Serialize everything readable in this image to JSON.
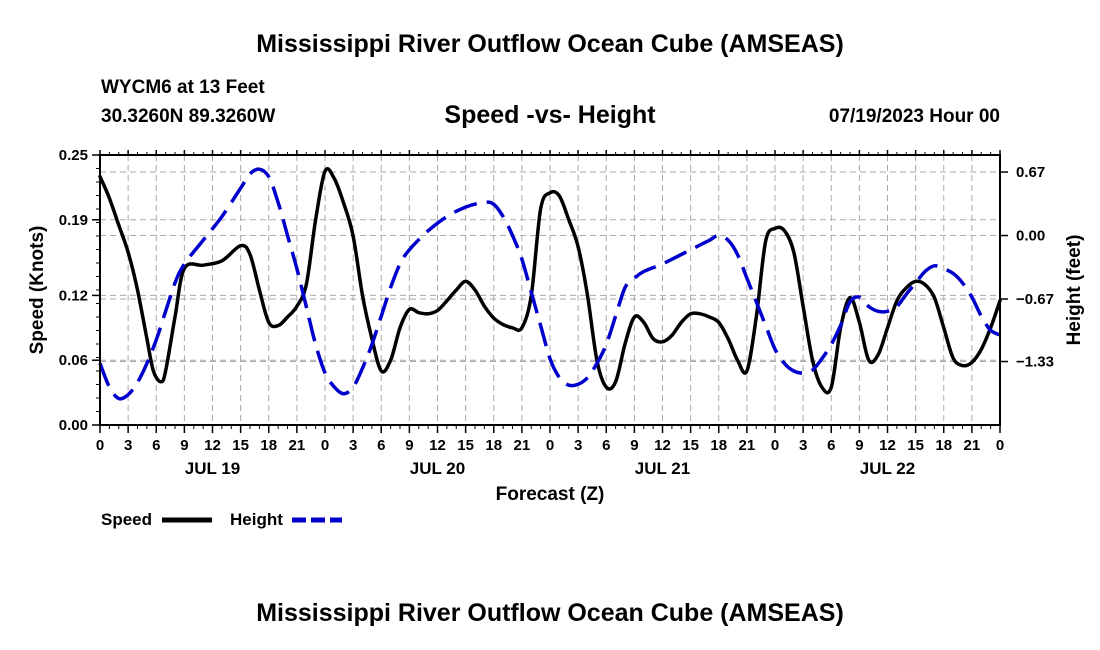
{
  "header": {
    "title": "Mississippi River Outflow Ocean Cube (AMSEAS)",
    "station": "WYCM6 at 13 Feet",
    "coords": "30.3260N  89.3260W",
    "subtitle": "Speed -vs- Height",
    "date_hour": "07/19/2023 Hour 00"
  },
  "footer": {
    "title": "Mississippi River Outflow Ocean Cube (AMSEAS)"
  },
  "legend": {
    "speed_label": "Speed",
    "height_label": "Height"
  },
  "colors": {
    "speed": "#000000",
    "height": "#0000cc",
    "grid": "#aaaaaa"
  },
  "chart_data": {
    "type": "line",
    "xlabel": "Forecast (Z)",
    "ylabel_left": "Speed (Knots)",
    "ylabel_right": "Height (feet)",
    "x_range_hours": [
      0,
      96
    ],
    "x_tick_hours": [
      0,
      3,
      6,
      9,
      12,
      15,
      18,
      21,
      24,
      27,
      30,
      33,
      36,
      39,
      42,
      45,
      48,
      51,
      54,
      57,
      60,
      63,
      66,
      69,
      72,
      75,
      78,
      81,
      84,
      87,
      90,
      93,
      96
    ],
    "x_tick_labels": [
      "0",
      "3",
      "6",
      "9",
      "12",
      "15",
      "18",
      "21",
      "0",
      "3",
      "6",
      "9",
      "12",
      "15",
      "18",
      "21",
      "0",
      "3",
      "6",
      "9",
      "12",
      "15",
      "18",
      "21",
      "0",
      "3",
      "6",
      "9",
      "12",
      "15",
      "18",
      "21",
      "0"
    ],
    "day_labels": [
      {
        "label": "JUL 19",
        "hour": 12
      },
      {
        "label": "JUL 20",
        "hour": 36
      },
      {
        "label": "JUL 21",
        "hour": 60
      },
      {
        "label": "JUL 22",
        "hour": 84
      }
    ],
    "y_left": {
      "range": [
        0,
        0.25
      ],
      "ticks": [
        0.0,
        0.06,
        0.12,
        0.19,
        0.25
      ],
      "tick_labels": [
        "0.00",
        "0.06",
        "0.12",
        "0.19",
        "0.25"
      ]
    },
    "y_right": {
      "range": [
        -2.0,
        0.85
      ],
      "ticks": [
        0.67,
        0.0,
        -0.67,
        -1.33
      ],
      "tick_labels": [
        "0.67",
        "0.00",
        "−0.67",
        "−1.33"
      ]
    },
    "series": [
      {
        "name": "Speed",
        "axis": "left",
        "style": "solid",
        "points": [
          [
            0,
            0.23
          ],
          [
            1,
            0.21
          ],
          [
            2,
            0.185
          ],
          [
            3,
            0.16
          ],
          [
            4,
            0.125
          ],
          [
            5,
            0.08
          ],
          [
            5.7,
            0.05
          ],
          [
            6.5,
            0.04
          ],
          [
            7,
            0.05
          ],
          [
            8,
            0.1
          ],
          [
            9,
            0.145
          ],
          [
            11,
            0.148
          ],
          [
            13,
            0.152
          ],
          [
            15,
            0.166
          ],
          [
            16,
            0.158
          ],
          [
            17,
            0.125
          ],
          [
            18,
            0.095
          ],
          [
            19,
            0.092
          ],
          [
            20,
            0.1
          ],
          [
            21,
            0.11
          ],
          [
            22,
            0.13
          ],
          [
            23,
            0.19
          ],
          [
            24,
            0.235
          ],
          [
            25,
            0.228
          ],
          [
            26,
            0.205
          ],
          [
            27,
            0.175
          ],
          [
            28,
            0.12
          ],
          [
            29,
            0.08
          ],
          [
            30,
            0.05
          ],
          [
            31,
            0.06
          ],
          [
            32,
            0.09
          ],
          [
            33,
            0.107
          ],
          [
            34,
            0.104
          ],
          [
            35,
            0.103
          ],
          [
            36,
            0.106
          ],
          [
            37,
            0.115
          ],
          [
            38,
            0.125
          ],
          [
            39,
            0.133
          ],
          [
            40,
            0.125
          ],
          [
            41,
            0.11
          ],
          [
            42,
            0.099
          ],
          [
            43,
            0.093
          ],
          [
            44,
            0.09
          ],
          [
            45,
            0.09
          ],
          [
            46,
            0.12
          ],
          [
            47,
            0.2
          ],
          [
            48,
            0.215
          ],
          [
            49,
            0.212
          ],
          [
            50,
            0.19
          ],
          [
            51,
            0.165
          ],
          [
            52,
            0.12
          ],
          [
            53,
            0.06
          ],
          [
            54,
            0.035
          ],
          [
            55,
            0.04
          ],
          [
            56,
            0.075
          ],
          [
            57,
            0.1
          ],
          [
            58,
            0.095
          ],
          [
            59,
            0.08
          ],
          [
            60,
            0.077
          ],
          [
            61,
            0.083
          ],
          [
            62,
            0.095
          ],
          [
            63,
            0.103
          ],
          [
            64,
            0.103
          ],
          [
            65,
            0.1
          ],
          [
            66,
            0.095
          ],
          [
            67,
            0.08
          ],
          [
            68,
            0.06
          ],
          [
            69,
            0.05
          ],
          [
            70,
            0.1
          ],
          [
            71,
            0.17
          ],
          [
            72,
            0.182
          ],
          [
            73,
            0.18
          ],
          [
            74,
            0.16
          ],
          [
            75,
            0.11
          ],
          [
            76,
            0.06
          ],
          [
            77,
            0.035
          ],
          [
            78,
            0.035
          ],
          [
            79,
            0.09
          ],
          [
            80,
            0.118
          ],
          [
            81,
            0.095
          ],
          [
            82,
            0.06
          ],
          [
            83,
            0.065
          ],
          [
            84,
            0.09
          ],
          [
            85,
            0.115
          ],
          [
            86,
            0.127
          ],
          [
            87,
            0.133
          ],
          [
            88,
            0.13
          ],
          [
            89,
            0.118
          ],
          [
            90,
            0.09
          ],
          [
            91,
            0.062
          ],
          [
            92,
            0.055
          ],
          [
            93,
            0.058
          ],
          [
            94,
            0.07
          ],
          [
            95,
            0.09
          ],
          [
            96,
            0.115
          ]
        ]
      },
      {
        "name": "Height",
        "axis": "right",
        "style": "dashed",
        "points": [
          [
            0,
            -1.35
          ],
          [
            1,
            -1.6
          ],
          [
            2,
            -1.72
          ],
          [
            3,
            -1.68
          ],
          [
            4,
            -1.55
          ],
          [
            5,
            -1.35
          ],
          [
            6,
            -1.1
          ],
          [
            7,
            -0.8
          ],
          [
            8,
            -0.5
          ],
          [
            9,
            -0.3
          ],
          [
            11,
            -0.05
          ],
          [
            13,
            0.2
          ],
          [
            15,
            0.5
          ],
          [
            16,
            0.65
          ],
          [
            17,
            0.7
          ],
          [
            18,
            0.62
          ],
          [
            19,
            0.35
          ],
          [
            20,
            0.0
          ],
          [
            21,
            -0.35
          ],
          [
            22,
            -0.75
          ],
          [
            23,
            -1.15
          ],
          [
            24,
            -1.45
          ],
          [
            25,
            -1.6
          ],
          [
            26,
            -1.67
          ],
          [
            27,
            -1.6
          ],
          [
            28,
            -1.4
          ],
          [
            29,
            -1.15
          ],
          [
            30,
            -0.85
          ],
          [
            31,
            -0.55
          ],
          [
            32,
            -0.3
          ],
          [
            33,
            -0.15
          ],
          [
            35,
            0.05
          ],
          [
            37,
            0.2
          ],
          [
            39,
            0.3
          ],
          [
            41,
            0.35
          ],
          [
            42,
            0.33
          ],
          [
            43,
            0.2
          ],
          [
            44,
            0.0
          ],
          [
            45,
            -0.25
          ],
          [
            46,
            -0.6
          ],
          [
            47,
            -0.95
          ],
          [
            48,
            -1.3
          ],
          [
            49,
            -1.5
          ],
          [
            50,
            -1.58
          ],
          [
            51,
            -1.57
          ],
          [
            52,
            -1.5
          ],
          [
            53,
            -1.35
          ],
          [
            54,
            -1.15
          ],
          [
            55,
            -0.85
          ],
          [
            56,
            -0.55
          ],
          [
            57,
            -0.45
          ],
          [
            58,
            -0.38
          ],
          [
            60,
            -0.3
          ],
          [
            62,
            -0.2
          ],
          [
            64,
            -0.1
          ],
          [
            65,
            -0.05
          ],
          [
            66,
            0.0
          ],
          [
            67,
            -0.05
          ],
          [
            68,
            -0.2
          ],
          [
            69,
            -0.45
          ],
          [
            70,
            -0.7
          ],
          [
            71,
            -0.95
          ],
          [
            72,
            -1.2
          ],
          [
            73,
            -1.35
          ],
          [
            74,
            -1.43
          ],
          [
            75,
            -1.45
          ],
          [
            76,
            -1.42
          ],
          [
            77,
            -1.3
          ],
          [
            78,
            -1.15
          ],
          [
            79,
            -0.95
          ],
          [
            80,
            -0.7
          ],
          [
            81,
            -0.65
          ],
          [
            82,
            -0.75
          ],
          [
            83,
            -0.8
          ],
          [
            84,
            -0.8
          ],
          [
            85,
            -0.75
          ],
          [
            86,
            -0.62
          ],
          [
            87,
            -0.5
          ],
          [
            88,
            -0.38
          ],
          [
            89,
            -0.32
          ],
          [
            90,
            -0.35
          ],
          [
            91,
            -0.4
          ],
          [
            92,
            -0.5
          ],
          [
            93,
            -0.65
          ],
          [
            94,
            -0.85
          ],
          [
            95,
            -1.0
          ],
          [
            96,
            -1.05
          ]
        ]
      }
    ]
  }
}
